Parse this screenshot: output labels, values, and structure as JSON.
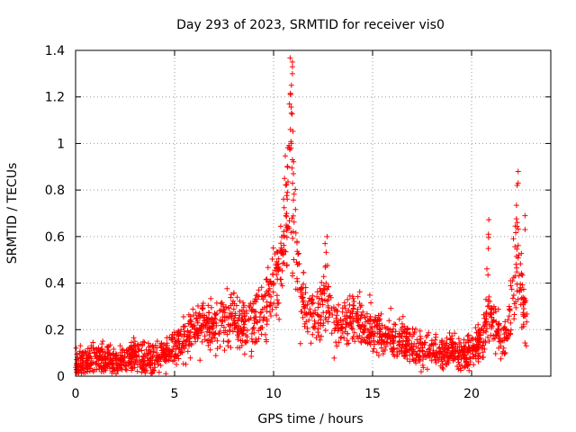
{
  "chart_data": {
    "type": "scatter",
    "title": "Day 293 of 2023, SRMTID for receiver vis0",
    "xlabel": "GPS time / hours",
    "ylabel": "SRMTID / TECUs",
    "xlim": [
      0,
      24
    ],
    "ylim": [
      0,
      1.4
    ],
    "xticks": [
      0,
      5,
      10,
      15,
      20
    ],
    "xtick_labels": [
      "0",
      "5",
      "10",
      "15",
      "20"
    ],
    "yticks": [
      0,
      0.2,
      0.4,
      0.6,
      0.8,
      1,
      1.2,
      1.4
    ],
    "ytick_labels": [
      "0",
      "0.2",
      "0.4",
      "0.6",
      "0.8",
      "1",
      "1.2",
      "1.4"
    ],
    "grid": true,
    "marker": "+",
    "color": "#ff0000",
    "trend_hours": [
      0,
      0.5,
      1,
      1.5,
      2,
      2.5,
      3,
      3.5,
      4,
      4.5,
      5,
      5.5,
      6,
      6.5,
      7,
      7.5,
      8,
      8.5,
      9,
      9.5,
      10,
      10.3,
      10.6,
      10.9,
      11.2,
      11.5,
      12,
      12.5,
      13,
      13.5,
      14,
      14.5,
      15,
      15.5,
      16,
      16.5,
      17,
      17.5,
      18,
      18.5,
      19,
      19.5,
      20,
      20.5,
      21,
      21.5,
      22,
      22.5,
      22.8
    ],
    "trend_values": [
      0.06,
      0.07,
      0.08,
      0.06,
      0.05,
      0.07,
      0.09,
      0.06,
      0.08,
      0.1,
      0.12,
      0.15,
      0.2,
      0.23,
      0.22,
      0.24,
      0.25,
      0.23,
      0.22,
      0.28,
      0.4,
      0.45,
      0.55,
      0.6,
      0.42,
      0.3,
      0.25,
      0.24,
      0.22,
      0.23,
      0.25,
      0.23,
      0.2,
      0.18,
      0.17,
      0.15,
      0.13,
      0.1,
      0.11,
      0.1,
      0.1,
      0.1,
      0.11,
      0.15,
      0.25,
      0.15,
      0.18,
      0.35,
      0.2
    ],
    "spread": 0.05,
    "points_per_hour": 90,
    "peaks": [
      {
        "center": 10.85,
        "width": 0.25,
        "height": 0.75
      },
      {
        "center": 12.6,
        "width": 0.2,
        "height": 0.25
      },
      {
        "center": 20.85,
        "width": 0.12,
        "height": 0.35
      },
      {
        "center": 22.2,
        "width": 0.25,
        "height": 0.45
      }
    ],
    "notable_points": [
      {
        "x": 10.95,
        "y": 1.35
      },
      {
        "x": 10.95,
        "y": 1.33
      },
      {
        "x": 10.95,
        "y": 1.3
      },
      {
        "x": 10.9,
        "y": 1.25
      },
      {
        "x": 10.85,
        "y": 1.21
      },
      {
        "x": 10.8,
        "y": 1.17
      },
      {
        "x": 10.9,
        "y": 1.13
      },
      {
        "x": 10.85,
        "y": 1.06
      },
      {
        "x": 10.8,
        "y": 0.98
      },
      {
        "x": 10.9,
        "y": 1.0
      },
      {
        "x": 10.95,
        "y": 0.93
      },
      {
        "x": 10.7,
        "y": 0.9
      },
      {
        "x": 11.0,
        "y": 0.87
      },
      {
        "x": 10.55,
        "y": 0.85
      },
      {
        "x": 22.35,
        "y": 0.88
      },
      {
        "x": 22.35,
        "y": 0.83
      },
      {
        "x": 22.3,
        "y": 0.82
      },
      {
        "x": 22.7,
        "y": 0.69
      },
      {
        "x": 22.7,
        "y": 0.63
      },
      {
        "x": 20.85,
        "y": 0.61
      },
      {
        "x": 12.7,
        "y": 0.6
      },
      {
        "x": 12.6,
        "y": 0.57
      }
    ]
  }
}
